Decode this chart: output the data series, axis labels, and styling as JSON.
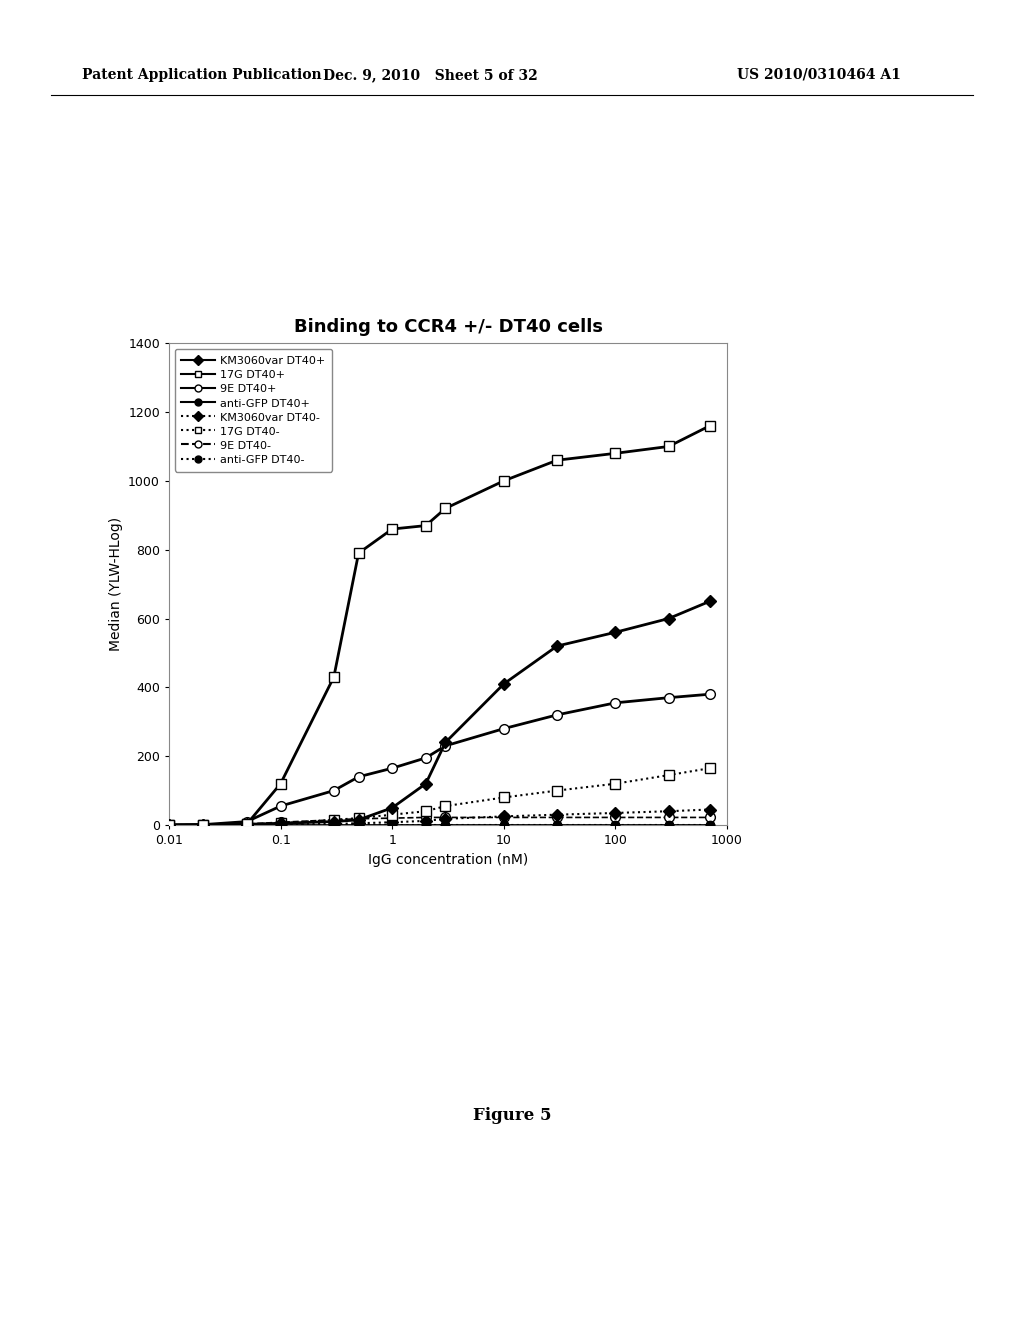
{
  "title": "Binding to CCR4 +/- DT40 cells",
  "xlabel": "IgG concentration (nM)",
  "ylabel": "Median (YLW-HLog)",
  "ylim": [
    0,
    1400
  ],
  "yticks": [
    0,
    200,
    400,
    600,
    800,
    1000,
    1200,
    1400
  ],
  "xtick_labels": [
    "0.01",
    "0.1",
    "1",
    "10",
    "100",
    "1000"
  ],
  "xtick_values": [
    0.01,
    0.1,
    1,
    10,
    100,
    1000
  ],
  "series": [
    {
      "label": "KM3060var DT40+",
      "x": [
        0.01,
        0.02,
        0.05,
        0.1,
        0.3,
        0.5,
        1,
        2,
        3,
        10,
        30,
        100,
        300,
        700
      ],
      "y": [
        0,
        1,
        2,
        5,
        10,
        15,
        50,
        120,
        240,
        410,
        520,
        560,
        600,
        650
      ],
      "linestyle": "solid",
      "marker": "D",
      "markersize": 6,
      "color": "#000000",
      "linewidth": 2.0,
      "markerfacecolor": "#000000",
      "zorder": 5
    },
    {
      "label": "17G DT40+",
      "x": [
        0.01,
        0.02,
        0.05,
        0.1,
        0.3,
        0.5,
        1,
        2,
        3,
        10,
        30,
        100,
        300,
        700
      ],
      "y": [
        0,
        1,
        3,
        120,
        430,
        790,
        860,
        870,
        920,
        1000,
        1060,
        1080,
        1100,
        1160
      ],
      "linestyle": "solid",
      "marker": "s",
      "markersize": 7,
      "color": "#000000",
      "linewidth": 2.0,
      "markerfacecolor": "#ffffff",
      "zorder": 5
    },
    {
      "label": "9E DT40+",
      "x": [
        0.01,
        0.02,
        0.05,
        0.1,
        0.3,
        0.5,
        1,
        2,
        3,
        10,
        30,
        100,
        300,
        700
      ],
      "y": [
        0,
        1,
        10,
        55,
        100,
        140,
        165,
        195,
        230,
        280,
        320,
        355,
        370,
        380
      ],
      "linestyle": "solid",
      "marker": "o",
      "markersize": 7,
      "color": "#000000",
      "linewidth": 2.0,
      "markerfacecolor": "#ffffff",
      "zorder": 4
    },
    {
      "label": "anti-GFP DT40+",
      "x": [
        0.01,
        0.02,
        0.05,
        0.1,
        0.3,
        0.5,
        1,
        2,
        3,
        10,
        30,
        100,
        300,
        700
      ],
      "y": [
        0,
        0,
        0,
        0,
        0,
        0,
        0,
        0,
        0,
        0,
        0,
        0,
        0,
        0
      ],
      "linestyle": "solid",
      "marker": "o",
      "markersize": 6,
      "color": "#000000",
      "linewidth": 2.0,
      "markerfacecolor": "#000000",
      "zorder": 3
    },
    {
      "label": "KM3060var DT40-",
      "x": [
        0.01,
        0.02,
        0.05,
        0.1,
        0.3,
        0.5,
        1,
        2,
        3,
        10,
        30,
        100,
        300,
        700
      ],
      "y": [
        0,
        0,
        0,
        2,
        3,
        5,
        8,
        12,
        18,
        25,
        30,
        35,
        40,
        45
      ],
      "linestyle": "dotted",
      "marker": "D",
      "markersize": 6,
      "color": "#000000",
      "linewidth": 1.5,
      "markerfacecolor": "#000000",
      "zorder": 4
    },
    {
      "label": "17G DT40-",
      "x": [
        0.01,
        0.02,
        0.05,
        0.1,
        0.3,
        0.5,
        1,
        2,
        3,
        10,
        30,
        100,
        300,
        700
      ],
      "y": [
        0,
        0,
        2,
        5,
        15,
        20,
        30,
        40,
        55,
        80,
        100,
        120,
        145,
        165
      ],
      "linestyle": "dotted",
      "marker": "s",
      "markersize": 7,
      "color": "#000000",
      "linewidth": 1.5,
      "markerfacecolor": "#ffffff",
      "zorder": 4
    },
    {
      "label": "9E DT40-",
      "x": [
        0.01,
        0.02,
        0.05,
        0.1,
        0.3,
        0.5,
        1,
        2,
        3,
        10,
        30,
        100,
        300,
        700
      ],
      "y": [
        0,
        0,
        3,
        8,
        15,
        18,
        20,
        22,
        22,
        22,
        22,
        22,
        22,
        22
      ],
      "linestyle": "dashed",
      "marker": "o",
      "markersize": 7,
      "color": "#000000",
      "linewidth": 1.2,
      "markerfacecolor": "#ffffff",
      "zorder": 3
    },
    {
      "label": "anti-GFP DT40-",
      "x": [
        0.01,
        0.02,
        0.05,
        0.1,
        0.3,
        0.5,
        1,
        2,
        3,
        10,
        30,
        100,
        300,
        700
      ],
      "y": [
        0,
        0,
        0,
        0,
        0,
        0,
        0,
        0,
        0,
        0,
        0,
        0,
        0,
        0
      ],
      "linestyle": "dotted",
      "marker": "o",
      "markersize": 6,
      "color": "#000000",
      "linewidth": 1.5,
      "markerfacecolor": "#000000",
      "zorder": 3
    }
  ],
  "header_left": "Patent Application Publication",
  "header_center": "Dec. 9, 2010   Sheet 5 of 32",
  "header_right": "US 2010/0310464 A1",
  "figure_caption": "Figure 5",
  "background_color": "#ffffff"
}
